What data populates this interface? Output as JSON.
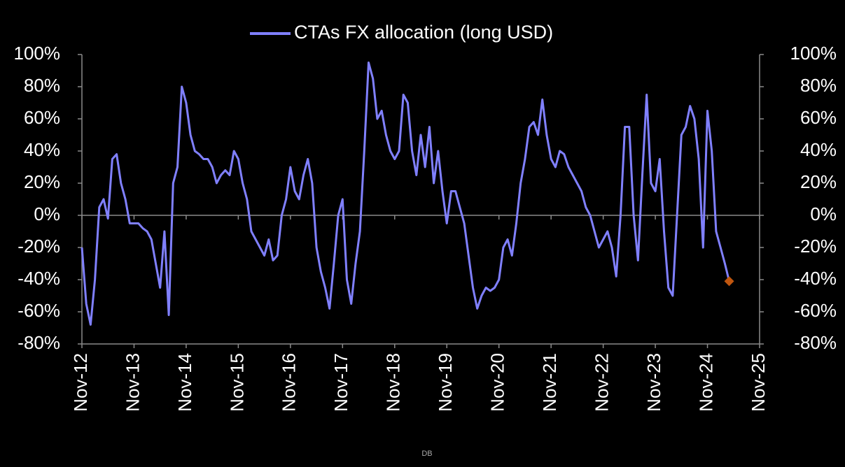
{
  "chart_data": {
    "type": "line",
    "legend": "top",
    "source": "DB",
    "categories": [
      "Nov-12",
      null,
      null,
      null,
      null,
      null,
      null,
      null,
      null,
      null,
      null,
      null,
      "Nov-13",
      null,
      null,
      null,
      null,
      null,
      null,
      null,
      null,
      null,
      null,
      null,
      "Nov-14",
      null,
      null,
      null,
      null,
      null,
      null,
      null,
      null,
      null,
      null,
      null,
      "Nov-15",
      null,
      null,
      null,
      null,
      null,
      null,
      null,
      null,
      null,
      null,
      null,
      "Nov-16",
      null,
      null,
      null,
      null,
      null,
      null,
      null,
      null,
      null,
      null,
      null,
      "Nov-17",
      null,
      null,
      null,
      null,
      null,
      null,
      null,
      null,
      null,
      null,
      null,
      "Nov-18",
      null,
      null,
      null,
      null,
      null,
      null,
      null,
      null,
      null,
      null,
      null,
      "Nov-19",
      null,
      null,
      null,
      null,
      null,
      null,
      null,
      null,
      null,
      null,
      null,
      "Nov-20",
      null,
      null,
      null,
      null,
      null,
      null,
      null,
      null,
      null,
      null,
      null,
      "Nov-21",
      null,
      null,
      null,
      null,
      null,
      null,
      null,
      null,
      null,
      null,
      null,
      "Nov-22",
      null,
      null,
      null,
      null,
      null,
      null,
      null,
      null,
      null,
      null,
      null,
      "Nov-23",
      null,
      null,
      null,
      null,
      null,
      null,
      null,
      null,
      null,
      null,
      null,
      "Nov-24",
      null,
      null,
      null,
      null,
      null,
      null,
      null,
      null,
      null,
      null,
      null,
      "Nov-25"
    ],
    "series": [
      {
        "name": "CTAs FX allocation (long USD)",
        "color": "#8080ff",
        "last_marker_color": "#c0560f",
        "values": [
          -20,
          -55,
          -68,
          -40,
          5,
          10,
          -2,
          35,
          38,
          20,
          10,
          -5,
          -5,
          -5,
          -8,
          -10,
          -15,
          -30,
          -45,
          -10,
          -62,
          20,
          30,
          80,
          70,
          50,
          40,
          38,
          35,
          35,
          30,
          20,
          25,
          28,
          25,
          40,
          35,
          20,
          10,
          -10,
          -15,
          -20,
          -25,
          -15,
          -28,
          -25,
          0,
          10,
          30,
          15,
          10,
          25,
          35,
          20,
          -20,
          -35,
          -45,
          -58,
          -30,
          0,
          10,
          -40,
          -55,
          -30,
          -10,
          40,
          95,
          85,
          60,
          65,
          50,
          40,
          35,
          40,
          75,
          70,
          40,
          25,
          50,
          30,
          55,
          20,
          40,
          15,
          -5,
          15,
          15,
          5,
          -5,
          -25,
          -45,
          -58,
          -50,
          -45,
          -47,
          -45,
          -40,
          -20,
          -15,
          -25,
          -5,
          20,
          35,
          55,
          58,
          50,
          72,
          50,
          35,
          30,
          40,
          38,
          30,
          25,
          20,
          15,
          5,
          0,
          -10,
          -20,
          -15,
          -10,
          -20,
          -38,
          0,
          55,
          55,
          0,
          -28,
          25,
          75,
          20,
          15,
          35,
          -10,
          -45,
          -50,
          0,
          50,
          55,
          68,
          60,
          35,
          -20,
          65,
          40,
          -10,
          -20,
          -30,
          -41,
          null,
          null,
          null,
          null,
          null,
          null,
          null
        ]
      }
    ],
    "ylim": [
      -80,
      100
    ],
    "yticks": [
      {
        "value": -80,
        "label": "-80%"
      },
      {
        "value": -60,
        "label": "-60%"
      },
      {
        "value": -40,
        "label": "-40%"
      },
      {
        "value": -20,
        "label": "-20%"
      },
      {
        "value": 0,
        "label": "0%"
      },
      {
        "value": 20,
        "label": "20%"
      },
      {
        "value": 40,
        "label": "40%"
      },
      {
        "value": 60,
        "label": "60%"
      },
      {
        "value": 80,
        "label": "80%"
      },
      {
        "value": 100,
        "label": "100%"
      }
    ],
    "y2lim": [
      -80,
      100
    ],
    "y2ticks": [
      {
        "value": -80,
        "label": "-80%"
      },
      {
        "value": -60,
        "label": "-60%"
      },
      {
        "value": -40,
        "label": "-40%"
      },
      {
        "value": -20,
        "label": "-20%"
      },
      {
        "value": 0,
        "label": "0%"
      },
      {
        "value": 20,
        "label": "20%"
      },
      {
        "value": 40,
        "label": "40%"
      },
      {
        "value": 60,
        "label": "60%"
      },
      {
        "value": 80,
        "label": "80%"
      },
      {
        "value": 100,
        "label": "100%"
      }
    ]
  }
}
